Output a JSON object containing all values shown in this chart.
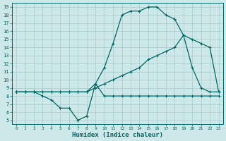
{
  "xlabel": "Humidex (Indice chaleur)",
  "ylabel": "",
  "bg_color": "#cce8e8",
  "line_color": "#006666",
  "grid_color": "#aacccc",
  "xlim": [
    -0.5,
    23.5
  ],
  "ylim": [
    4.5,
    19.5
  ],
  "xticks": [
    0,
    1,
    2,
    3,
    4,
    5,
    6,
    7,
    8,
    9,
    10,
    11,
    12,
    13,
    14,
    15,
    16,
    17,
    18,
    19,
    20,
    21,
    22,
    23
  ],
  "yticks": [
    5,
    6,
    7,
    8,
    9,
    10,
    11,
    12,
    13,
    14,
    15,
    16,
    17,
    18,
    19
  ],
  "curve_max_x": [
    0,
    1,
    2,
    3,
    4,
    5,
    6,
    7,
    8,
    9,
    10,
    11,
    12,
    13,
    14,
    15,
    16,
    17,
    18,
    19,
    20,
    21,
    22,
    23
  ],
  "curve_max_y": [
    8.5,
    8.5,
    8.5,
    8.5,
    8.5,
    8.5,
    8.5,
    8.5,
    8.5,
    9.5,
    11.5,
    14.5,
    18.0,
    18.5,
    18.5,
    19.0,
    19.0,
    18.0,
    17.5,
    15.5,
    11.5,
    9.0,
    8.5,
    8.5
  ],
  "curve_mean_x": [
    0,
    1,
    2,
    3,
    4,
    5,
    6,
    7,
    8,
    9,
    10,
    11,
    12,
    13,
    14,
    15,
    16,
    17,
    18,
    19,
    20,
    21,
    22,
    23
  ],
  "curve_mean_y": [
    8.5,
    8.5,
    8.5,
    8.5,
    8.5,
    8.5,
    8.5,
    8.5,
    8.5,
    9.0,
    9.5,
    10.0,
    10.5,
    11.0,
    11.5,
    12.5,
    13.0,
    13.5,
    14.0,
    15.5,
    15.0,
    14.5,
    14.0,
    8.5
  ],
  "curve_min_x": [
    0,
    1,
    2,
    3,
    4,
    5,
    6,
    7,
    8,
    9,
    10,
    11,
    12,
    13,
    14,
    15,
    16,
    17,
    18,
    19,
    20,
    21,
    22,
    23
  ],
  "curve_min_y": [
    8.5,
    8.5,
    8.5,
    8.0,
    7.5,
    6.5,
    6.5,
    5.0,
    5.5,
    9.5,
    8.0,
    8.0,
    8.0,
    8.0,
    8.0,
    8.0,
    8.0,
    8.0,
    8.0,
    8.0,
    8.0,
    8.0,
    8.0,
    8.0
  ]
}
